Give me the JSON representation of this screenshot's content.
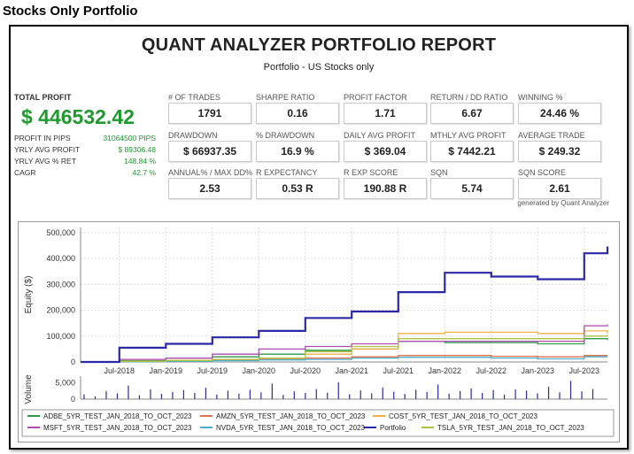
{
  "heading": "Stocks Only Portfolio",
  "report": {
    "title": "QUANT ANALYZER PORTFOLIO REPORT",
    "subtitle": "Portfolio - US Stocks only",
    "generated_by": "generated by Quant Analyzer"
  },
  "summary": {
    "total_profit_label": "TOTAL PROFIT",
    "total_profit_value": "$ 446532.42",
    "rows": [
      {
        "label": "PROFIT IN PIPS",
        "value": "31064500 PIPS"
      },
      {
        "label": "YRLY AVG PROFIT",
        "value": "$ 89306.48"
      },
      {
        "label": "YRLY AVG % RET",
        "value": "148.84 %"
      },
      {
        "label": "CAGR",
        "value": "42.7 %"
      }
    ]
  },
  "stats": [
    {
      "label": "# OF TRADES",
      "value": "1791"
    },
    {
      "label": "SHARPE RATIO",
      "value": "0.16"
    },
    {
      "label": "PROFIT FACTOR",
      "value": "1.71"
    },
    {
      "label": "RETURN / DD RATIO",
      "value": "6.67"
    },
    {
      "label": "WINNING %",
      "value": "24.46 %"
    },
    {
      "label": "DRAWDOWN",
      "value": "$ 66937.35"
    },
    {
      "label": "% DRAWDOWN",
      "value": "16.9 %"
    },
    {
      "label": "DAILY AVG PROFIT",
      "value": "$ 369.04"
    },
    {
      "label": "MTHLY AVG PROFIT",
      "value": "$ 7442.21"
    },
    {
      "label": "AVERAGE TRADE",
      "value": "$ 249.32"
    },
    {
      "label": "ANNUAL% / MAX DD%",
      "value": "2.53"
    },
    {
      "label": "R EXPECTANCY",
      "value": "0.53 R"
    },
    {
      "label": "R EXP SCORE",
      "value": "190.88 R"
    },
    {
      "label": "SQN",
      "value": "5.74"
    },
    {
      "label": "SQN SCORE",
      "value": "2.61"
    }
  ],
  "colors": {
    "accent_green": "#1f9a2e",
    "portfolio": "#2a2aa8",
    "adbe": "#2e9a4a",
    "amzn": "#e0704a",
    "cost": "#f0b040",
    "msft": "#b04ab0",
    "nvda": "#4ab0d0",
    "tsla": "#b0c040"
  },
  "chart_data": {
    "type": "line",
    "x": [
      "2018-02",
      "2018-07",
      "2019-01",
      "2019-07",
      "2020-01",
      "2020-07",
      "2021-01",
      "2021-07",
      "2022-01",
      "2022-07",
      "2023-01",
      "2023-07",
      "2023-10"
    ],
    "x_tick_labels": [
      "Jul-2018",
      "Jan-2019",
      "Jul-2019",
      "Jan-2020",
      "Jul-2020",
      "Jan-2021",
      "Jul-2021",
      "Jan-2022",
      "Jul-2022",
      "Jan-2023",
      "Jul-2023"
    ],
    "ylabel": "Equity ($)",
    "ylim": [
      0,
      520000
    ],
    "y_ticks": [
      0,
      100000,
      200000,
      300000,
      400000,
      500000
    ],
    "y_tick_labels": [
      "0",
      "100,000",
      "200,000",
      "300,000",
      "400,000",
      "500,000"
    ],
    "grid": true,
    "legend_position": "bottom",
    "series": [
      {
        "name": "Portfolio",
        "values": [
          0,
          55000,
          70000,
          95000,
          120000,
          170000,
          195000,
          270000,
          345000,
          330000,
          320000,
          420000,
          446532
        ]
      },
      {
        "name": "ADBE_5YR_TEST_JAN_2018_TO_OCT_2023",
        "values": [
          0,
          5000,
          15000,
          20000,
          30000,
          45000,
          50000,
          80000,
          75000,
          75000,
          70000,
          90000,
          85000
        ]
      },
      {
        "name": "AMZN_5YR_TEST_JAN_2018_TO_OCT_2023",
        "values": [
          0,
          2000,
          5000,
          8000,
          10000,
          15000,
          20000,
          25000,
          25000,
          22000,
          20000,
          25000,
          25000
        ]
      },
      {
        "name": "COST_5YR_TEST_JAN_2018_TO_OCT_2023",
        "values": [
          0,
          3000,
          6000,
          10000,
          15000,
          30000,
          50000,
          110000,
          115000,
          115000,
          110000,
          120000,
          110000
        ]
      },
      {
        "name": "MSFT_5YR_TEST_JAN_2018_TO_OCT_2023",
        "values": [
          0,
          10000,
          15000,
          30000,
          50000,
          60000,
          70000,
          80000,
          80000,
          80000,
          80000,
          140000,
          145000
        ]
      },
      {
        "name": "NVDA_5YR_TEST_JAN_2018_TO_OCT_2023",
        "values": [
          0,
          1000,
          2000,
          5000,
          8000,
          10000,
          15000,
          18000,
          18000,
          15000,
          12000,
          20000,
          20000
        ]
      },
      {
        "name": "TSLA_5YR_TEST_JAN_2018_TO_OCT_2023",
        "values": [
          0,
          2000,
          5000,
          10000,
          15000,
          40000,
          60000,
          90000,
          90000,
          90000,
          90000,
          100000,
          105000
        ]
      }
    ],
    "volume": {
      "ylabel": "Volume",
      "y_ticks": [
        0,
        5000
      ],
      "y_tick_labels": [
        "0",
        "5,000"
      ],
      "values": [
        1500,
        900,
        2500,
        1800,
        4200,
        1200,
        3000,
        1600,
        2200,
        2800,
        1900,
        3500,
        1400,
        2600,
        1700,
        2900,
        2100,
        4800,
        1300,
        2400,
        1900,
        3100,
        2000,
        5200,
        1500,
        2700,
        1800,
        3600,
        2300,
        1600,
        2900,
        2200,
        4500,
        1700,
        2500,
        3300,
        1900,
        2800,
        1400,
        3000,
        2600,
        1800,
        3800,
        2100,
        5600,
        2400,
        3100
      ]
    }
  }
}
